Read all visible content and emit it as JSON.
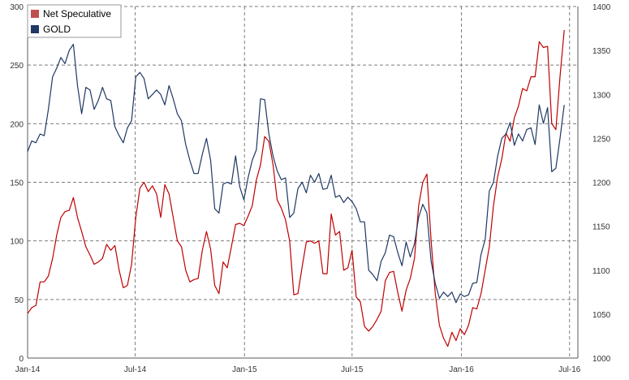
{
  "chart_data": {
    "type": "line",
    "title": "",
    "grid": true,
    "legend_position": "top-left",
    "x": {
      "type": "time",
      "range": [
        "2014-01-01",
        "2016-07-15"
      ],
      "tick_labels": [
        "Jan-14",
        "Jul-14",
        "Jan-15",
        "Jul-15",
        "Jan-16",
        "Jul-16"
      ],
      "tick_dates": [
        "2014-01-01",
        "2014-07-01",
        "2015-01-01",
        "2015-07-01",
        "2016-01-01",
        "2016-07-01"
      ]
    },
    "y_left": {
      "range": [
        0,
        300
      ],
      "ticks": [
        0,
        50,
        100,
        150,
        200,
        250,
        300
      ]
    },
    "y_right": {
      "range": [
        1000,
        1400
      ],
      "ticks": [
        1000,
        1050,
        1100,
        1150,
        1200,
        1250,
        1300,
        1350,
        1400
      ]
    },
    "series": [
      {
        "name": "Net Speculative",
        "axis": "left",
        "color": "#c00000",
        "legend_color": "#c0504d",
        "points": [
          [
            "2014-01-01",
            38
          ],
          [
            "2014-01-08",
            43
          ],
          [
            "2014-01-15",
            45
          ],
          [
            "2014-01-22",
            65
          ],
          [
            "2014-01-29",
            65
          ],
          [
            "2014-02-05",
            70
          ],
          [
            "2014-02-12",
            85
          ],
          [
            "2014-02-19",
            105
          ],
          [
            "2014-02-26",
            120
          ],
          [
            "2014-03-05",
            125
          ],
          [
            "2014-03-12",
            126
          ],
          [
            "2014-03-19",
            137
          ],
          [
            "2014-03-26",
            120
          ],
          [
            "2014-04-02",
            108
          ],
          [
            "2014-04-09",
            95
          ],
          [
            "2014-04-16",
            88
          ],
          [
            "2014-04-23",
            80
          ],
          [
            "2014-04-30",
            82
          ],
          [
            "2014-05-07",
            85
          ],
          [
            "2014-05-14",
            97
          ],
          [
            "2014-05-21",
            92
          ],
          [
            "2014-05-28",
            96
          ],
          [
            "2014-06-04",
            75
          ],
          [
            "2014-06-11",
            60
          ],
          [
            "2014-06-18",
            62
          ],
          [
            "2014-06-25",
            80
          ],
          [
            "2014-07-02",
            120
          ],
          [
            "2014-07-09",
            145
          ],
          [
            "2014-07-16",
            150
          ],
          [
            "2014-07-23",
            142
          ],
          [
            "2014-07-30",
            147
          ],
          [
            "2014-08-06",
            140
          ],
          [
            "2014-08-13",
            120
          ],
          [
            "2014-08-20",
            148
          ],
          [
            "2014-08-27",
            140
          ],
          [
            "2014-09-03",
            120
          ],
          [
            "2014-09-10",
            100
          ],
          [
            "2014-09-17",
            95
          ],
          [
            "2014-09-24",
            75
          ],
          [
            "2014-10-01",
            65
          ],
          [
            "2014-10-08",
            67
          ],
          [
            "2014-10-15",
            68
          ],
          [
            "2014-10-22",
            92
          ],
          [
            "2014-10-29",
            108
          ],
          [
            "2014-11-05",
            93
          ],
          [
            "2014-11-12",
            62
          ],
          [
            "2014-11-19",
            55
          ],
          [
            "2014-11-26",
            82
          ],
          [
            "2014-12-03",
            77
          ],
          [
            "2014-12-10",
            95
          ],
          [
            "2014-12-17",
            114
          ],
          [
            "2014-12-24",
            115
          ],
          [
            "2014-12-31",
            113
          ],
          [
            "2015-01-07",
            121
          ],
          [
            "2015-01-14",
            130
          ],
          [
            "2015-01-21",
            152
          ],
          [
            "2015-01-28",
            165
          ],
          [
            "2015-02-04",
            189
          ],
          [
            "2015-02-11",
            185
          ],
          [
            "2015-02-18",
            165
          ],
          [
            "2015-02-25",
            135
          ],
          [
            "2015-03-04",
            128
          ],
          [
            "2015-03-11",
            118
          ],
          [
            "2015-03-18",
            100
          ],
          [
            "2015-03-25",
            54
          ],
          [
            "2015-04-01",
            55
          ],
          [
            "2015-04-08",
            78
          ],
          [
            "2015-04-15",
            99
          ],
          [
            "2015-04-22",
            100
          ],
          [
            "2015-04-29",
            98
          ],
          [
            "2015-05-06",
            100
          ],
          [
            "2015-05-13",
            72
          ],
          [
            "2015-05-20",
            72
          ],
          [
            "2015-05-27",
            123
          ],
          [
            "2015-06-03",
            105
          ],
          [
            "2015-06-10",
            108
          ],
          [
            "2015-06-17",
            75
          ],
          [
            "2015-06-24",
            77
          ],
          [
            "2015-07-01",
            92
          ],
          [
            "2015-07-08",
            52
          ],
          [
            "2015-07-15",
            48
          ],
          [
            "2015-07-22",
            27
          ],
          [
            "2015-07-29",
            23
          ],
          [
            "2015-08-05",
            27
          ],
          [
            "2015-08-12",
            33
          ],
          [
            "2015-08-19",
            40
          ],
          [
            "2015-08-26",
            66
          ],
          [
            "2015-09-02",
            73
          ],
          [
            "2015-09-09",
            74
          ],
          [
            "2015-09-16",
            56
          ],
          [
            "2015-09-23",
            40
          ],
          [
            "2015-09-30",
            58
          ],
          [
            "2015-10-07",
            68
          ],
          [
            "2015-10-14",
            85
          ],
          [
            "2015-10-21",
            130
          ],
          [
            "2015-10-28",
            150
          ],
          [
            "2015-11-04",
            157
          ],
          [
            "2015-11-11",
            100
          ],
          [
            "2015-11-18",
            55
          ],
          [
            "2015-11-25",
            28
          ],
          [
            "2015-12-02",
            17
          ],
          [
            "2015-12-09",
            10
          ],
          [
            "2015-12-16",
            22
          ],
          [
            "2015-12-23",
            15
          ],
          [
            "2015-12-30",
            25
          ],
          [
            "2016-01-06",
            20
          ],
          [
            "2016-01-13",
            28
          ],
          [
            "2016-01-20",
            43
          ],
          [
            "2016-01-27",
            42
          ],
          [
            "2016-02-03",
            55
          ],
          [
            "2016-02-10",
            75
          ],
          [
            "2016-02-17",
            95
          ],
          [
            "2016-02-24",
            130
          ],
          [
            "2016-03-02",
            155
          ],
          [
            "2016-03-09",
            170
          ],
          [
            "2016-03-16",
            192
          ],
          [
            "2016-03-23",
            185
          ],
          [
            "2016-03-30",
            205
          ],
          [
            "2016-04-06",
            215
          ],
          [
            "2016-04-13",
            230
          ],
          [
            "2016-04-20",
            228
          ],
          [
            "2016-04-27",
            240
          ],
          [
            "2016-05-04",
            240
          ],
          [
            "2016-05-11",
            270
          ],
          [
            "2016-05-18",
            265
          ],
          [
            "2016-05-25",
            266
          ],
          [
            "2016-06-01",
            200
          ],
          [
            "2016-06-08",
            195
          ],
          [
            "2016-06-15",
            240
          ],
          [
            "2016-06-22",
            280
          ]
        ]
      },
      {
        "name": "GOLD",
        "axis": "right",
        "color": "#1f3864",
        "legend_color": "#1f3864",
        "points": [
          [
            "2014-01-01",
            1235
          ],
          [
            "2014-01-08",
            1247
          ],
          [
            "2014-01-15",
            1245
          ],
          [
            "2014-01-22",
            1255
          ],
          [
            "2014-01-29",
            1253
          ],
          [
            "2014-02-05",
            1283
          ],
          [
            "2014-02-12",
            1320
          ],
          [
            "2014-02-19",
            1330
          ],
          [
            "2014-02-26",
            1342
          ],
          [
            "2014-03-05",
            1335
          ],
          [
            "2014-03-12",
            1350
          ],
          [
            "2014-03-19",
            1357
          ],
          [
            "2014-03-26",
            1310
          ],
          [
            "2014-04-02",
            1278
          ],
          [
            "2014-04-09",
            1308
          ],
          [
            "2014-04-16",
            1305
          ],
          [
            "2014-04-23",
            1283
          ],
          [
            "2014-04-30",
            1293
          ],
          [
            "2014-05-07",
            1308
          ],
          [
            "2014-05-14",
            1295
          ],
          [
            "2014-05-21",
            1293
          ],
          [
            "2014-05-28",
            1263
          ],
          [
            "2014-06-04",
            1253
          ],
          [
            "2014-06-11",
            1245
          ],
          [
            "2014-06-18",
            1262
          ],
          [
            "2014-06-25",
            1270
          ],
          [
            "2014-07-02",
            1320
          ],
          [
            "2014-07-09",
            1325
          ],
          [
            "2014-07-16",
            1318
          ],
          [
            "2014-07-23",
            1295
          ],
          [
            "2014-07-30",
            1300
          ],
          [
            "2014-08-06",
            1305
          ],
          [
            "2014-08-13",
            1300
          ],
          [
            "2014-08-20",
            1288
          ],
          [
            "2014-08-27",
            1310
          ],
          [
            "2014-09-03",
            1295
          ],
          [
            "2014-09-10",
            1278
          ],
          [
            "2014-09-17",
            1270
          ],
          [
            "2014-09-24",
            1243
          ],
          [
            "2014-10-01",
            1225
          ],
          [
            "2014-10-08",
            1210
          ],
          [
            "2014-10-15",
            1210
          ],
          [
            "2014-10-22",
            1232
          ],
          [
            "2014-10-29",
            1250
          ],
          [
            "2014-11-05",
            1225
          ],
          [
            "2014-11-12",
            1170
          ],
          [
            "2014-11-19",
            1165
          ],
          [
            "2014-11-26",
            1198
          ],
          [
            "2014-12-03",
            1200
          ],
          [
            "2014-12-10",
            1198
          ],
          [
            "2014-12-17",
            1230
          ],
          [
            "2014-12-24",
            1195
          ],
          [
            "2014-12-31",
            1180
          ],
          [
            "2015-01-07",
            1205
          ],
          [
            "2015-01-14",
            1225
          ],
          [
            "2015-01-21",
            1237
          ],
          [
            "2015-01-28",
            1295
          ],
          [
            "2015-02-04",
            1294
          ],
          [
            "2015-02-11",
            1255
          ],
          [
            "2015-02-18",
            1230
          ],
          [
            "2015-02-25",
            1213
          ],
          [
            "2015-03-04",
            1203
          ],
          [
            "2015-03-11",
            1205
          ],
          [
            "2015-03-18",
            1160
          ],
          [
            "2015-03-25",
            1165
          ],
          [
            "2015-04-01",
            1193
          ],
          [
            "2015-04-08",
            1200
          ],
          [
            "2015-04-15",
            1188
          ],
          [
            "2015-04-22",
            1208
          ],
          [
            "2015-04-29",
            1200
          ],
          [
            "2015-05-06",
            1210
          ],
          [
            "2015-05-13",
            1192
          ],
          [
            "2015-05-20",
            1193
          ],
          [
            "2015-05-27",
            1208
          ],
          [
            "2015-06-03",
            1183
          ],
          [
            "2015-06-10",
            1185
          ],
          [
            "2015-06-17",
            1177
          ],
          [
            "2015-06-24",
            1183
          ],
          [
            "2015-07-01",
            1178
          ],
          [
            "2015-07-08",
            1170
          ],
          [
            "2015-07-15",
            1155
          ],
          [
            "2015-07-22",
            1155
          ],
          [
            "2015-07-29",
            1100
          ],
          [
            "2015-08-05",
            1095
          ],
          [
            "2015-08-12",
            1088
          ],
          [
            "2015-08-19",
            1110
          ],
          [
            "2015-08-26",
            1120
          ],
          [
            "2015-09-02",
            1140
          ],
          [
            "2015-09-09",
            1138
          ],
          [
            "2015-09-16",
            1120
          ],
          [
            "2015-09-23",
            1105
          ],
          [
            "2015-09-30",
            1132
          ],
          [
            "2015-10-07",
            1115
          ],
          [
            "2015-10-14",
            1130
          ],
          [
            "2015-10-21",
            1160
          ],
          [
            "2015-10-28",
            1175
          ],
          [
            "2015-11-04",
            1165
          ],
          [
            "2015-11-11",
            1110
          ],
          [
            "2015-11-18",
            1085
          ],
          [
            "2015-11-25",
            1068
          ],
          [
            "2015-12-02",
            1075
          ],
          [
            "2015-12-09",
            1070
          ],
          [
            "2015-12-16",
            1075
          ],
          [
            "2015-12-23",
            1063
          ],
          [
            "2015-12-30",
            1073
          ],
          [
            "2016-01-06",
            1070
          ],
          [
            "2016-01-13",
            1072
          ],
          [
            "2016-01-20",
            1085
          ],
          [
            "2016-01-27",
            1086
          ],
          [
            "2016-02-03",
            1118
          ],
          [
            "2016-02-10",
            1135
          ],
          [
            "2016-02-17",
            1190
          ],
          [
            "2016-02-24",
            1200
          ],
          [
            "2016-03-02",
            1230
          ],
          [
            "2016-03-09",
            1250
          ],
          [
            "2016-03-16",
            1255
          ],
          [
            "2016-03-23",
            1268
          ],
          [
            "2016-03-30",
            1242
          ],
          [
            "2016-04-06",
            1255
          ],
          [
            "2016-04-13",
            1247
          ],
          [
            "2016-04-20",
            1260
          ],
          [
            "2016-04-27",
            1262
          ],
          [
            "2016-05-04",
            1243
          ],
          [
            "2016-05-11",
            1288
          ],
          [
            "2016-05-18",
            1267
          ],
          [
            "2016-05-25",
            1285
          ],
          [
            "2016-06-01",
            1212
          ],
          [
            "2016-06-08",
            1216
          ],
          [
            "2016-06-15",
            1250
          ],
          [
            "2016-06-22",
            1288
          ]
        ]
      }
    ]
  }
}
